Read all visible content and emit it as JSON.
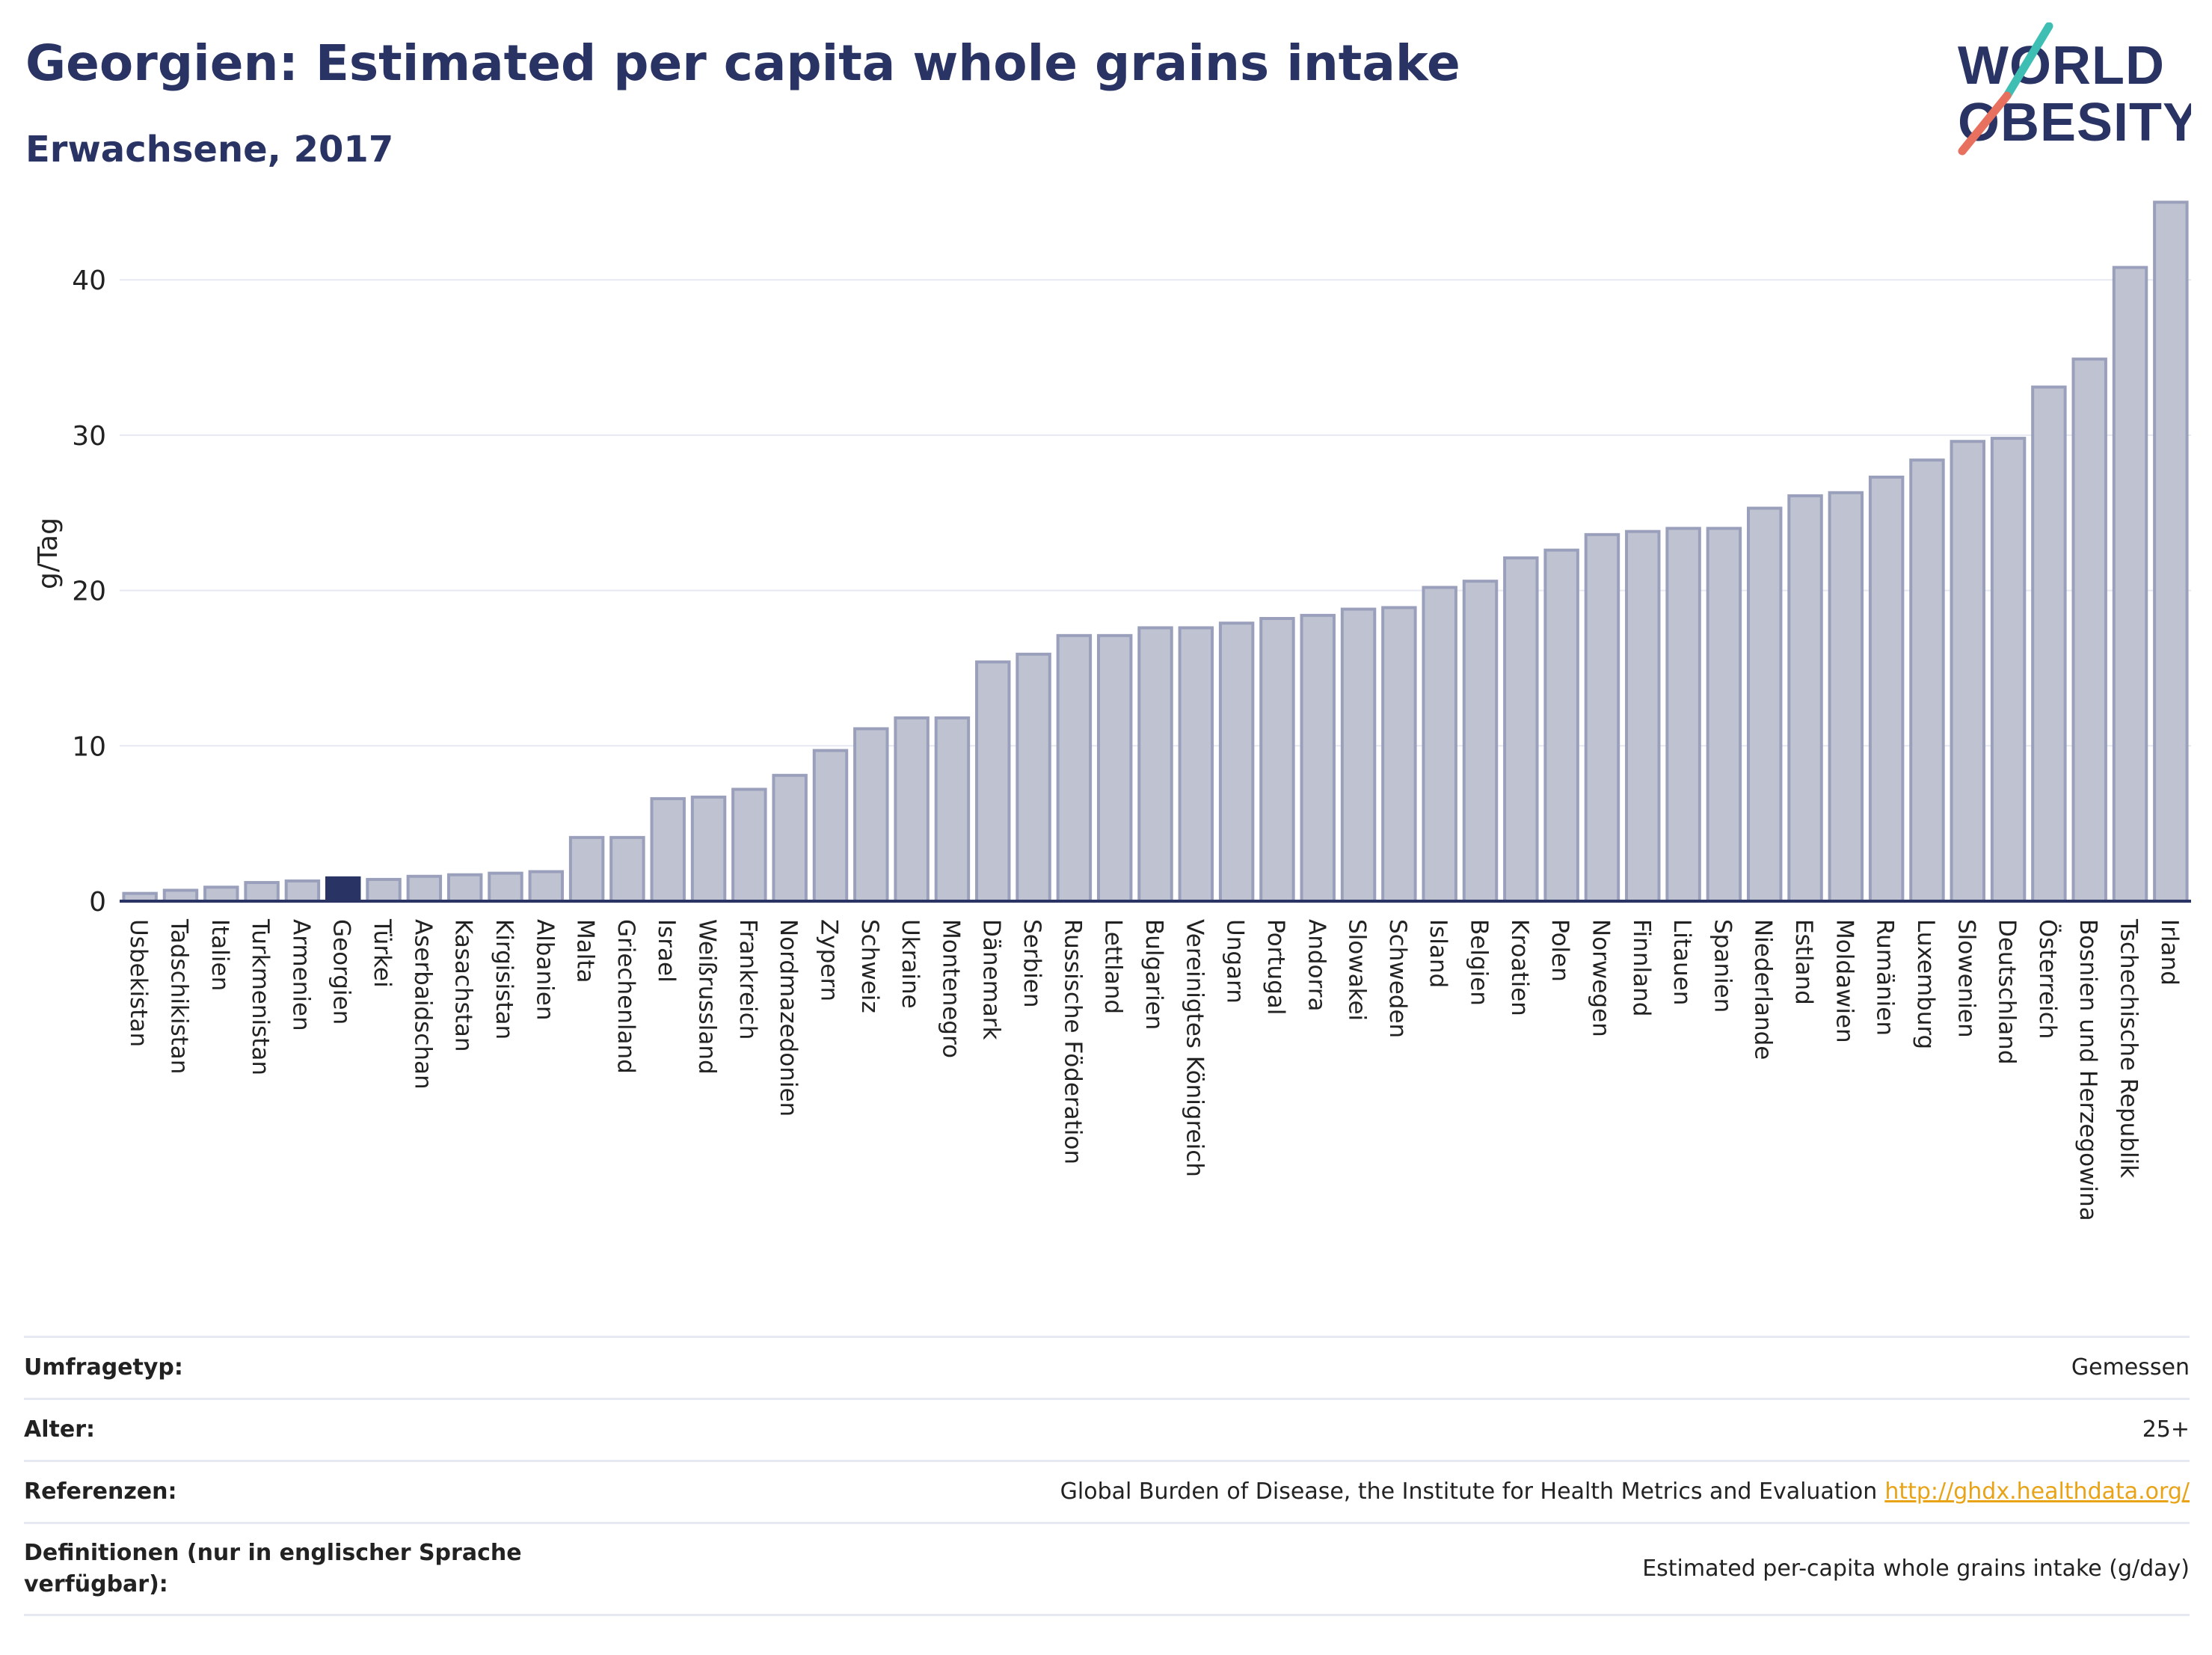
{
  "header": {
    "title": "Georgien: Estimated per capita whole grains intake",
    "subtitle": "Erwachsene, 2017"
  },
  "logo": {
    "line1": "WORLD",
    "line2": "OBESITY",
    "colors": {
      "text": "#2a3464",
      "slash_teal": "#3fbfb4",
      "slash_coral": "#e8705f"
    }
  },
  "colors": {
    "bar_fill": "#bfc3d1",
    "bar_stroke": "#9aa0bb",
    "highlight": "#2a3464",
    "grid": "#e6e9f2",
    "axis": "#2a3464"
  },
  "chart_data": {
    "type": "bar",
    "title": "",
    "xlabel": "",
    "ylabel": "g/Tag",
    "ylim": [
      0,
      45.5
    ],
    "yticks": [
      0,
      10,
      20,
      30,
      40
    ],
    "grid": true,
    "highlight_category": "Georgien",
    "categories": [
      "Usbekistan",
      "Tadschikistan",
      "Italien",
      "Turkmenistan",
      "Armenien",
      "Georgien",
      "Türkei",
      "Aserbaidschan",
      "Kasachstan",
      "Kirgisistan",
      "Albanien",
      "Malta",
      "Griechenland",
      "Israel",
      "Weißrussland",
      "Frankreich",
      "Nordmazedonien",
      "Zypern",
      "Schweiz",
      "Ukraine",
      "Montenegro",
      "Dänemark",
      "Serbien",
      "Russische Föderation",
      "Lettland",
      "Bulgarien",
      "Vereinigtes Königreich",
      "Ungarn",
      "Portugal",
      "Andorra",
      "Slowakei",
      "Schweden",
      "Island",
      "Belgien",
      "Kroatien",
      "Polen",
      "Norwegen",
      "Finnland",
      "Litauen",
      "Spanien",
      "Niederlande",
      "Estland",
      "Moldawien",
      "Rumänien",
      "Luxemburg",
      "Slowenien",
      "Deutschland",
      "Österreich",
      "Bosnien und Herzegowina",
      "Tschechische Republik",
      "Irland"
    ],
    "values": [
      0.5,
      0.7,
      0.9,
      1.2,
      1.3,
      1.5,
      1.4,
      1.6,
      1.7,
      1.8,
      1.9,
      4.1,
      4.1,
      6.6,
      6.7,
      7.2,
      8.1,
      9.7,
      11.1,
      11.8,
      11.8,
      15.4,
      15.9,
      17.1,
      17.1,
      17.6,
      17.6,
      17.9,
      18.2,
      18.4,
      18.8,
      18.9,
      20.2,
      20.6,
      22.1,
      22.6,
      23.6,
      23.8,
      24.0,
      24.0,
      25.3,
      26.1,
      26.3,
      27.3,
      28.4,
      29.6,
      29.8,
      33.1,
      34.9,
      40.8,
      45.0
    ]
  },
  "meta": {
    "survey_type": {
      "label": "Umfragetyp:",
      "value": "Gemessen"
    },
    "age": {
      "label": "Alter:",
      "value": "25+"
    },
    "references": {
      "label": "Referenzen:",
      "value": "Global Burden of Disease, the Institute for Health Metrics and Evaluation",
      "link": "http://ghdx.healthdata.org/"
    },
    "definitions": {
      "label": "Definitionen (nur in englischer Sprache verfügbar):",
      "value": "Estimated per-capita whole grains intake (g/day)"
    }
  }
}
